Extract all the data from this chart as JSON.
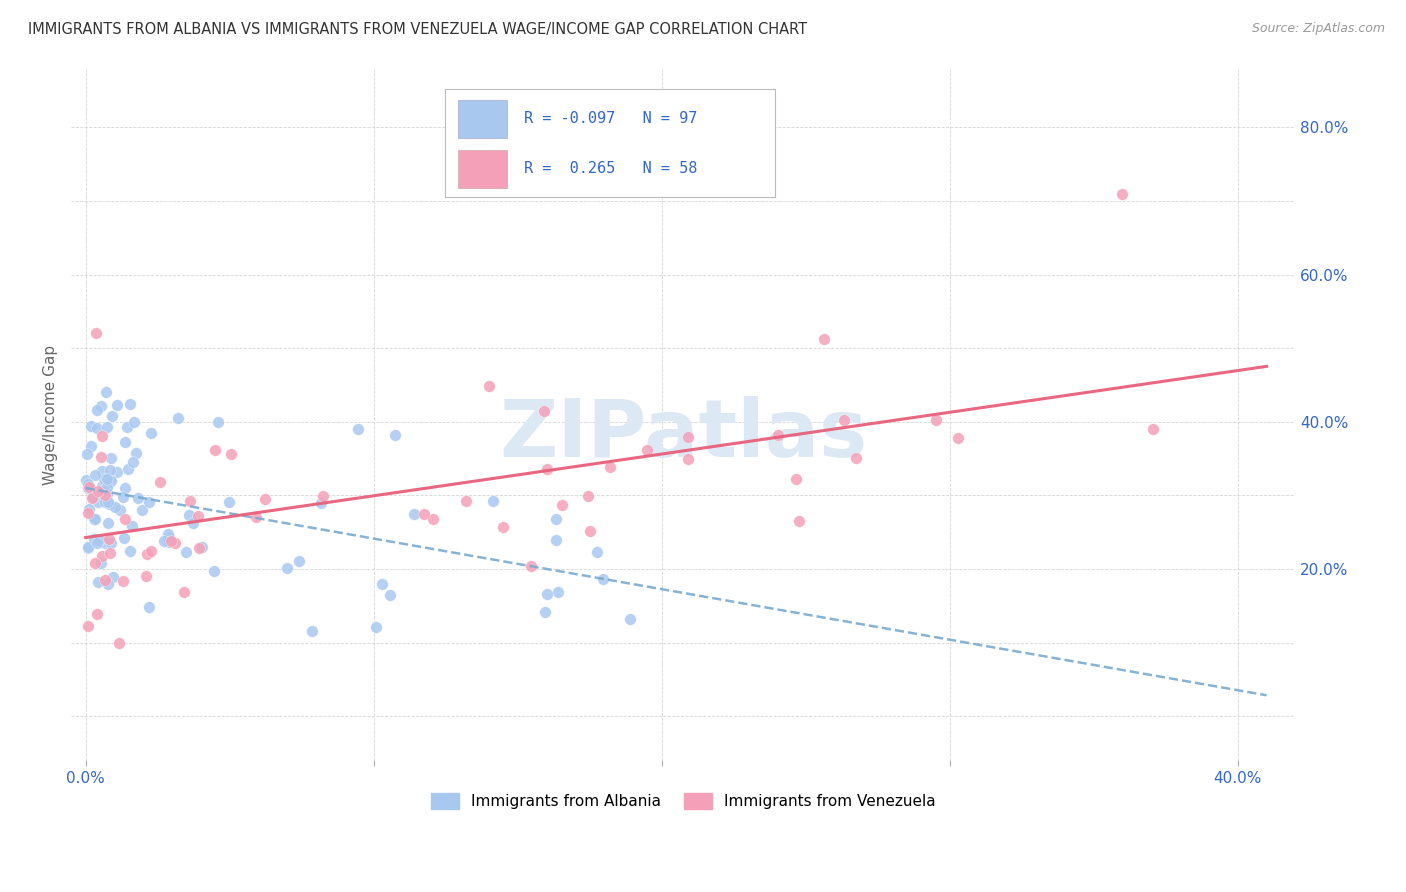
{
  "title": "IMMIGRANTS FROM ALBANIA VS IMMIGRANTS FROM VENEZUELA WAGE/INCOME GAP CORRELATION CHART",
  "source": "Source: ZipAtlas.com",
  "ylabel": "Wage/Income Gap",
  "albania_R": -0.097,
  "albania_N": 97,
  "venezuela_R": 0.265,
  "venezuela_N": 58,
  "albania_color": "#a8c8f0",
  "venezuela_color": "#f4a0b8",
  "albania_line_color": "#7aaad0",
  "venezuela_line_color": "#e8607a",
  "label_color": "#3366cc",
  "title_color": "#333333",
  "source_color": "#999999",
  "watermark_text": "ZIPatlas",
  "watermark_color": "#dde8f5",
  "legend_label_albania": "Immigrants from Albania",
  "legend_label_venezuela": "Immigrants from Venezuela",
  "background_color": "#ffffff",
  "grid_color": "#cccccc",
  "xlim": [
    -0.005,
    0.42
  ],
  "ylim": [
    -0.06,
    0.88
  ],
  "x_tick_positions": [
    0.0,
    0.1,
    0.2,
    0.3,
    0.4
  ],
  "x_tick_labels": [
    "0.0%",
    "",
    "",
    "",
    "40.0%"
  ],
  "y_tick_positions": [
    0.0,
    0.1,
    0.2,
    0.3,
    0.4,
    0.5,
    0.6,
    0.7,
    0.8
  ],
  "y_tick_labels": [
    "",
    "",
    "20.0%",
    "",
    "40.0%",
    "",
    "60.0%",
    "",
    "80.0%"
  ]
}
